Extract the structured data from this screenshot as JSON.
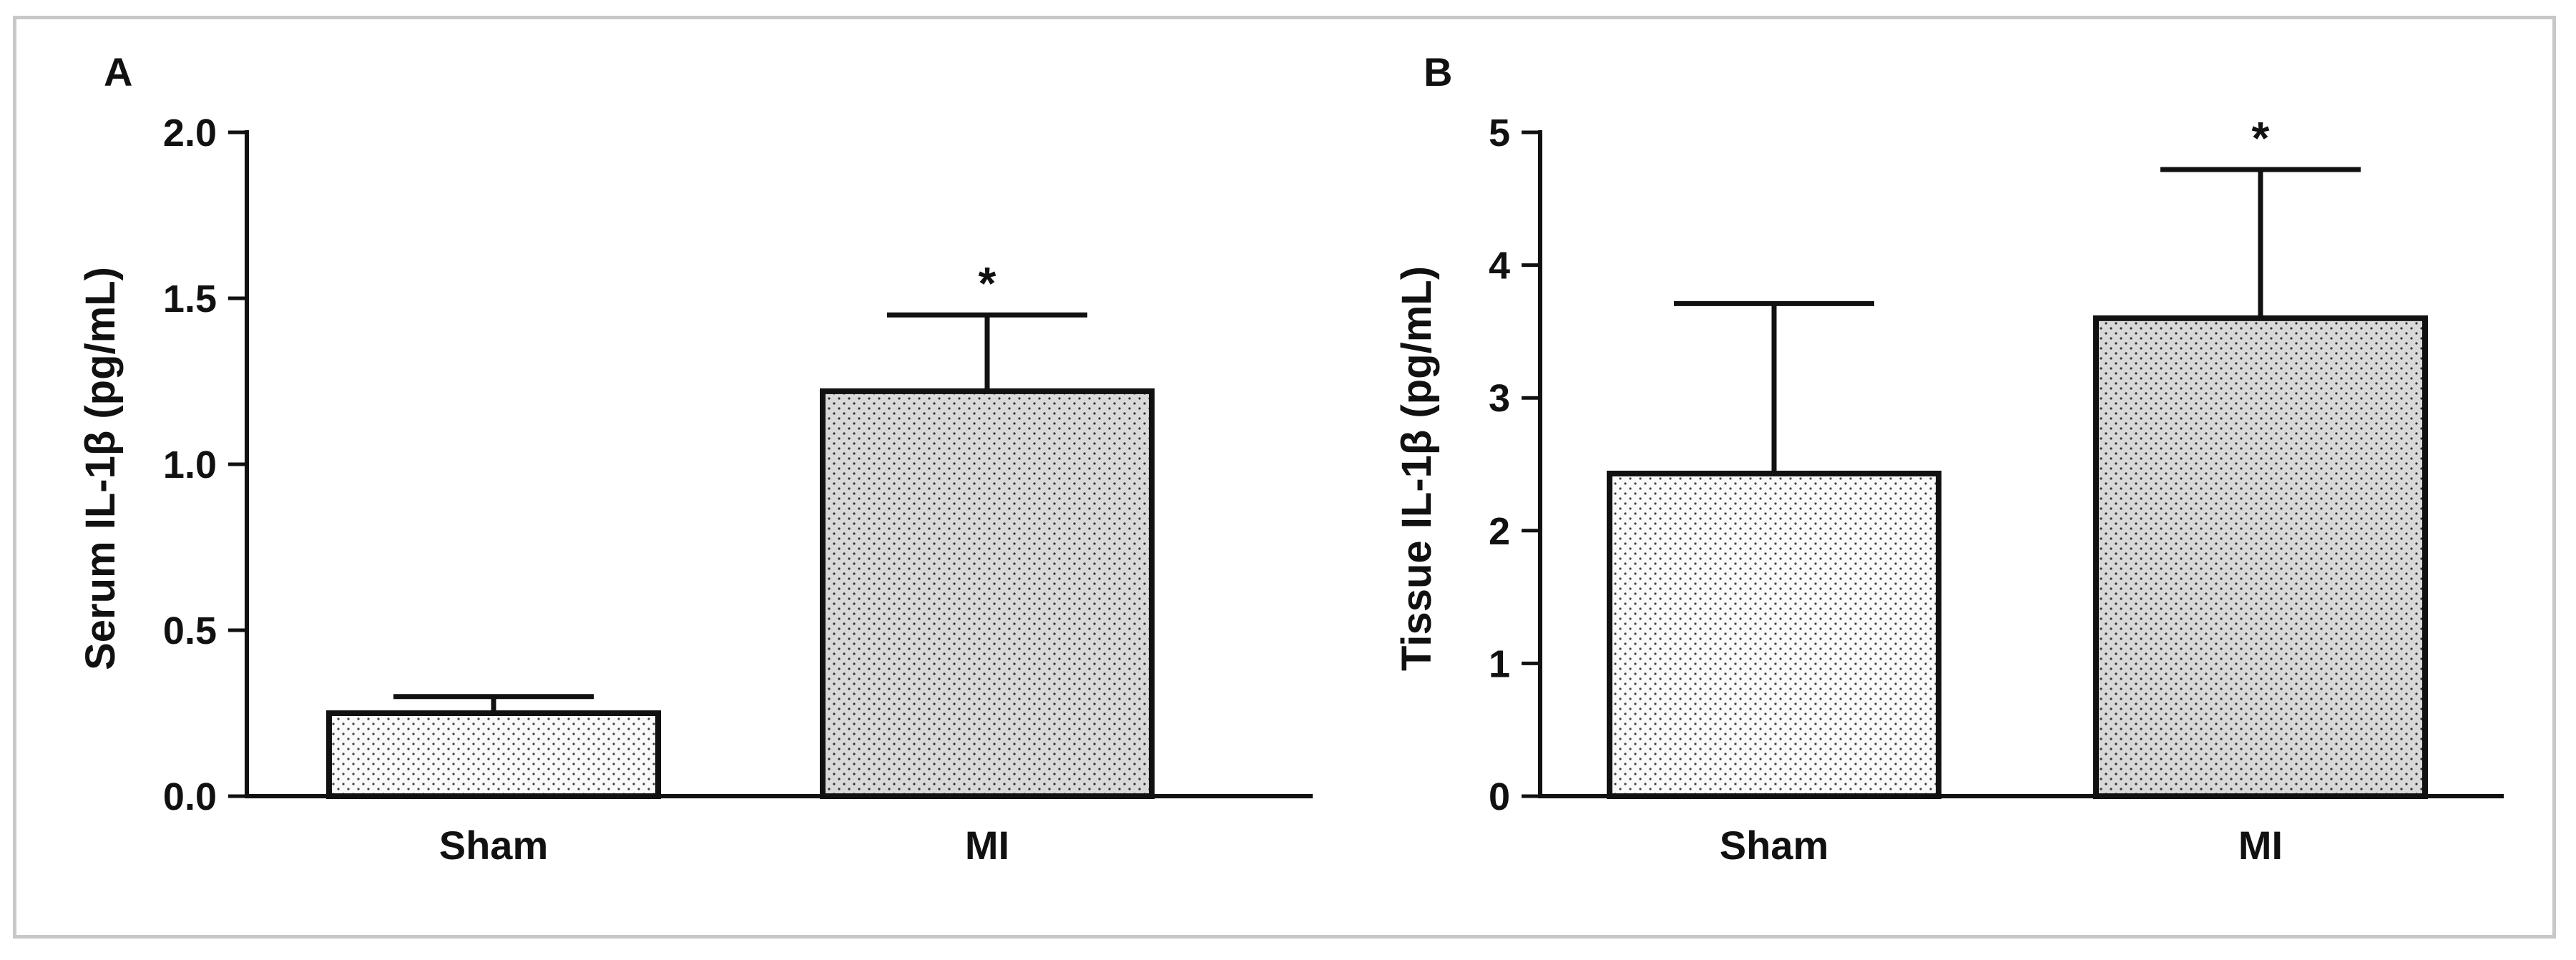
{
  "figure": {
    "style": {
      "frame_color": "#c8c8c8",
      "axis_color": "#111111",
      "sham_fill": "#fafafa",
      "mi_fill": "#d9d9d9",
      "dot_color": "#444444"
    }
  },
  "chart_data": [
    {
      "type": "bar",
      "panel_label": "A",
      "categories": [
        "Sham",
        "MI"
      ],
      "values": [
        0.25,
        1.22
      ],
      "errors": [
        0.05,
        0.23
      ],
      "significance": [
        "",
        "*"
      ],
      "ylabel": "Serum IL-1β (pg/mL)",
      "xlabel": "",
      "ylim": [
        0,
        2.0
      ],
      "yticks": [
        0,
        0.5,
        1.0,
        1.5,
        2.0
      ],
      "ytick_labels": [
        "0.0",
        "0.5",
        "1.0",
        "1.5",
        "2.0"
      ]
    },
    {
      "type": "bar",
      "panel_label": "B",
      "categories": [
        "Sham",
        "MI"
      ],
      "values": [
        2.43,
        3.6
      ],
      "errors": [
        1.28,
        1.12
      ],
      "significance": [
        "",
        "*"
      ],
      "ylabel": "Tissue IL-1β (pg/mL)",
      "xlabel": "",
      "ylim": [
        0,
        5
      ],
      "yticks": [
        0,
        1,
        2,
        3,
        4,
        5
      ],
      "ytick_labels": [
        "0",
        "1",
        "2",
        "3",
        "4",
        "5"
      ]
    }
  ]
}
